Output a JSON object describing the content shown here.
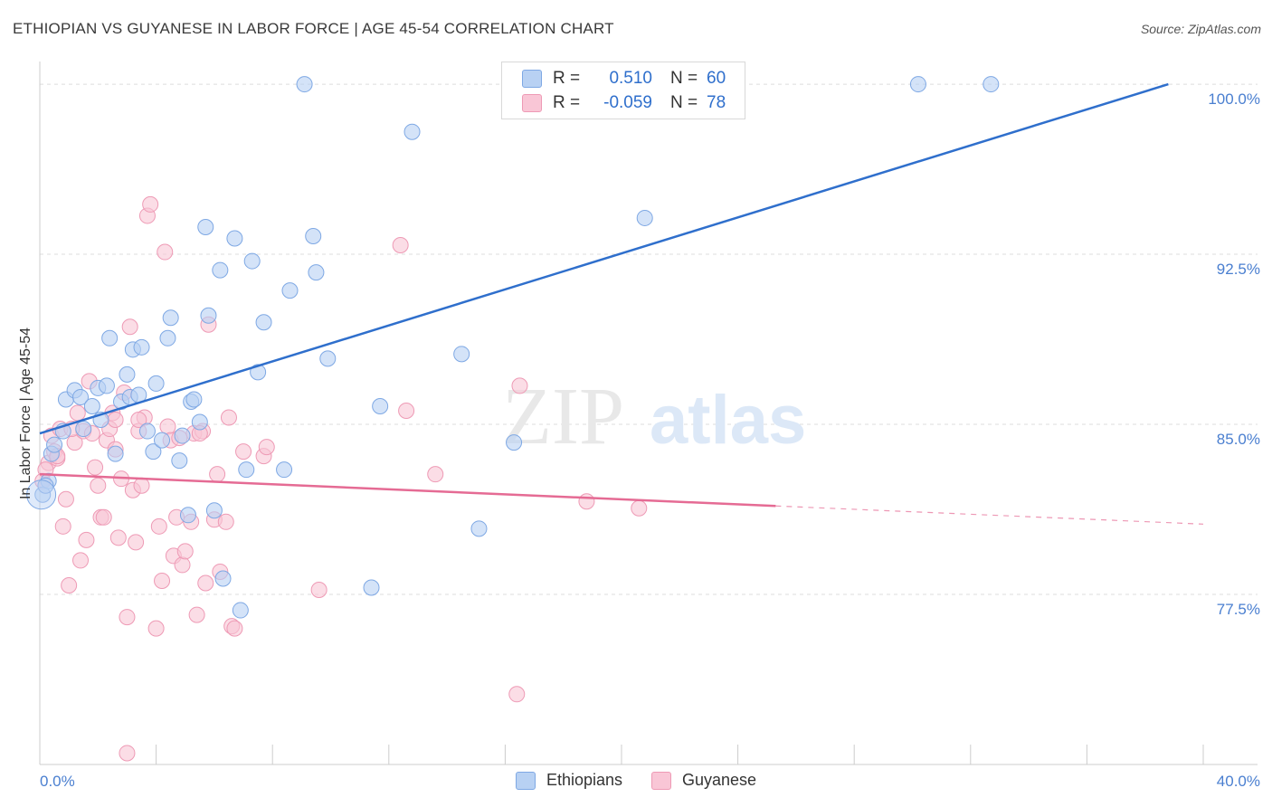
{
  "header": {
    "title": "ETHIOPIAN VS GUYANESE IN LABOR FORCE | AGE 45-54 CORRELATION CHART",
    "source": "Source: ZipAtlas.com"
  },
  "watermark": {
    "part1": "ZIP",
    "part2": "atlas"
  },
  "legend": {
    "rows": [
      {
        "r_label": "R =",
        "r_value": "0.510",
        "n_label": "N =",
        "n_value": "60"
      },
      {
        "r_label": "R =",
        "r_value": "-0.059",
        "n_label": "N =",
        "n_value": "78"
      }
    ]
  },
  "colors": {
    "ethiopians_fill": "#b8d1f3",
    "ethiopians_stroke": "#7ea8e4",
    "ethiopians_line": "#2f6fcc",
    "guyanese_fill": "#f9c6d6",
    "guyanese_stroke": "#ee9ab5",
    "guyanese_line": "#e56b94",
    "tick_text": "#4a7fd0"
  },
  "chart_data": {
    "type": "scatter",
    "ylabel": "In Labor Force | Age 45-54",
    "xlim": [
      0,
      40
    ],
    "ylim": [
      70.0,
      101.0
    ],
    "x_tick_labels": [
      {
        "value": 0,
        "label": "0.0%"
      },
      {
        "value": 40,
        "label": "40.0%"
      }
    ],
    "y_ticks": [
      {
        "value": 77.5,
        "label": "77.5%"
      },
      {
        "value": 85.0,
        "label": "85.0%"
      },
      {
        "value": 92.5,
        "label": "92.5%"
      },
      {
        "value": 100.0,
        "label": "100.0%"
      }
    ],
    "x_minor_ticks": [
      0,
      4,
      8,
      12,
      16,
      20,
      24,
      28,
      32,
      36,
      40
    ],
    "grid": true,
    "legend_position": "top-center",
    "series": [
      {
        "name": "Ethiopians",
        "trend": {
          "x0": 0,
          "y0": 84.6,
          "x1": 38.8,
          "y1": 100.0,
          "dashed_to": null
        },
        "points": [
          [
            0.1,
            81.9
          ],
          [
            0.3,
            82.5
          ],
          [
            0.4,
            83.7
          ],
          [
            0.5,
            84.1
          ],
          [
            0.8,
            84.7
          ],
          [
            0.9,
            86.1
          ],
          [
            1.2,
            86.5
          ],
          [
            1.4,
            86.2
          ],
          [
            1.5,
            84.8
          ],
          [
            1.8,
            85.8
          ],
          [
            2.0,
            86.6
          ],
          [
            2.1,
            85.2
          ],
          [
            2.3,
            86.7
          ],
          [
            2.4,
            88.8
          ],
          [
            2.6,
            83.7
          ],
          [
            2.8,
            86.0
          ],
          [
            3.0,
            87.2
          ],
          [
            3.1,
            86.2
          ],
          [
            3.2,
            88.3
          ],
          [
            3.4,
            86.3
          ],
          [
            3.5,
            88.4
          ],
          [
            3.7,
            84.7
          ],
          [
            3.9,
            83.8
          ],
          [
            4.0,
            86.8
          ],
          [
            4.2,
            84.3
          ],
          [
            4.4,
            88.8
          ],
          [
            4.5,
            89.7
          ],
          [
            4.8,
            83.4
          ],
          [
            4.9,
            84.5
          ],
          [
            5.1,
            81.0
          ],
          [
            5.2,
            86.0
          ],
          [
            5.3,
            86.1
          ],
          [
            5.5,
            85.1
          ],
          [
            5.7,
            93.7
          ],
          [
            5.8,
            89.8
          ],
          [
            6.0,
            81.2
          ],
          [
            6.2,
            91.8
          ],
          [
            6.3,
            78.2
          ],
          [
            6.7,
            93.2
          ],
          [
            6.9,
            76.8
          ],
          [
            7.1,
            83.0
          ],
          [
            7.3,
            92.2
          ],
          [
            7.5,
            87.3
          ],
          [
            7.7,
            89.5
          ],
          [
            8.4,
            83.0
          ],
          [
            8.6,
            90.9
          ],
          [
            9.1,
            100.0
          ],
          [
            9.4,
            93.3
          ],
          [
            9.5,
            91.7
          ],
          [
            9.9,
            87.9
          ],
          [
            11.4,
            77.8
          ],
          [
            11.7,
            85.8
          ],
          [
            12.8,
            97.9
          ],
          [
            14.5,
            88.1
          ],
          [
            15.1,
            80.4
          ],
          [
            16.3,
            84.2
          ],
          [
            20.8,
            94.1
          ],
          [
            30.2,
            100.0
          ],
          [
            32.7,
            100.0
          ],
          [
            0.2,
            82.3
          ]
        ]
      },
      {
        "name": "Guyanese",
        "trend": {
          "x0": 0,
          "y0": 82.8,
          "x1": 25.3,
          "y1": 81.4,
          "dashed_to": {
            "x": 40,
            "y": 80.6
          }
        },
        "points": [
          [
            0.1,
            82.5
          ],
          [
            0.3,
            83.3
          ],
          [
            0.4,
            84.5
          ],
          [
            0.5,
            83.8
          ],
          [
            0.6,
            83.5
          ],
          [
            0.7,
            84.8
          ],
          [
            0.8,
            80.5
          ],
          [
            0.9,
            81.7
          ],
          [
            1.0,
            77.9
          ],
          [
            1.2,
            84.2
          ],
          [
            1.3,
            85.5
          ],
          [
            1.4,
            79.0
          ],
          [
            1.5,
            84.7
          ],
          [
            1.6,
            79.9
          ],
          [
            1.7,
            86.9
          ],
          [
            1.8,
            84.6
          ],
          [
            1.9,
            83.1
          ],
          [
            2.0,
            82.3
          ],
          [
            2.1,
            80.9
          ],
          [
            2.2,
            80.9
          ],
          [
            2.3,
            84.3
          ],
          [
            2.4,
            84.8
          ],
          [
            2.5,
            85.5
          ],
          [
            2.6,
            83.9
          ],
          [
            2.7,
            80.0
          ],
          [
            2.8,
            82.6
          ],
          [
            2.9,
            86.4
          ],
          [
            3.0,
            76.5
          ],
          [
            3.1,
            89.3
          ],
          [
            3.2,
            82.1
          ],
          [
            3.3,
            79.8
          ],
          [
            3.4,
            84.7
          ],
          [
            3.5,
            82.3
          ],
          [
            3.6,
            85.3
          ],
          [
            3.7,
            94.2
          ],
          [
            3.8,
            94.7
          ],
          [
            4.0,
            76.0
          ],
          [
            4.1,
            80.5
          ],
          [
            4.2,
            78.1
          ],
          [
            4.3,
            92.6
          ],
          [
            4.4,
            84.9
          ],
          [
            4.5,
            84.3
          ],
          [
            4.6,
            79.2
          ],
          [
            4.7,
            80.9
          ],
          [
            4.9,
            78.8
          ],
          [
            5.0,
            79.4
          ],
          [
            5.2,
            80.7
          ],
          [
            5.3,
            84.6
          ],
          [
            5.4,
            76.6
          ],
          [
            5.6,
            84.7
          ],
          [
            5.7,
            78.0
          ],
          [
            5.8,
            89.4
          ],
          [
            6.0,
            80.8
          ],
          [
            6.1,
            82.8
          ],
          [
            6.2,
            78.5
          ],
          [
            6.4,
            80.7
          ],
          [
            6.5,
            85.3
          ],
          [
            6.6,
            76.1
          ],
          [
            6.7,
            76.0
          ],
          [
            7.0,
            83.8
          ],
          [
            7.7,
            83.6
          ],
          [
            7.8,
            84.0
          ],
          [
            9.6,
            77.7
          ],
          [
            12.4,
            92.9
          ],
          [
            12.6,
            85.6
          ],
          [
            13.6,
            82.8
          ],
          [
            16.4,
            73.1
          ],
          [
            16.5,
            86.7
          ],
          [
            18.8,
            81.6
          ],
          [
            20.6,
            81.3
          ],
          [
            3.0,
            70.5
          ],
          [
            0.2,
            83.0
          ],
          [
            1.1,
            84.8
          ],
          [
            2.6,
            85.2
          ],
          [
            3.4,
            85.2
          ],
          [
            4.8,
            84.4
          ],
          [
            5.5,
            84.6
          ],
          [
            0.6,
            83.6
          ]
        ]
      }
    ]
  }
}
